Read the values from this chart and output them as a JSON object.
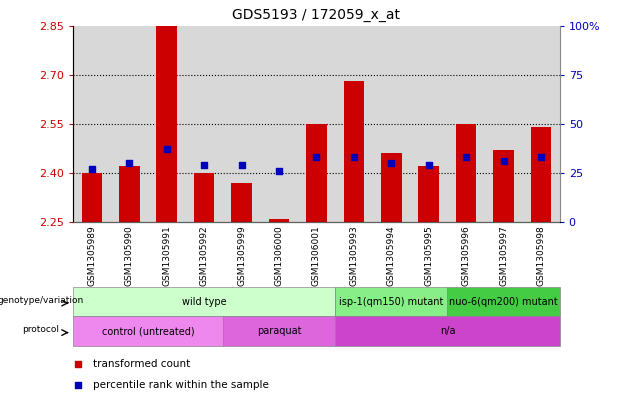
{
  "title": "GDS5193 / 172059_x_at",
  "samples": [
    "GSM1305989",
    "GSM1305990",
    "GSM1305991",
    "GSM1305992",
    "GSM1305999",
    "GSM1306000",
    "GSM1306001",
    "GSM1305993",
    "GSM1305994",
    "GSM1305995",
    "GSM1305996",
    "GSM1305997",
    "GSM1305998"
  ],
  "transformed_count": [
    2.4,
    2.42,
    2.85,
    2.4,
    2.37,
    2.26,
    2.55,
    2.68,
    2.46,
    2.42,
    2.55,
    2.47,
    2.54
  ],
  "percentile_rank": [
    27,
    30,
    37,
    29,
    29,
    26,
    33,
    33,
    30,
    29,
    33,
    31,
    33
  ],
  "ylim_left": [
    2.25,
    2.85
  ],
  "ylim_right": [
    0,
    100
  ],
  "yticks_left": [
    2.25,
    2.4,
    2.55,
    2.7,
    2.85
  ],
  "yticks_right": [
    0,
    25,
    50,
    75,
    100
  ],
  "bar_color": "#cc0000",
  "dot_color": "#0000bb",
  "bar_bottom": 2.25,
  "grid_color": "#000000",
  "plot_bg": "#d8d8d8",
  "genotype_groups": [
    {
      "label": "wild type",
      "start": 0,
      "end": 7,
      "color": "#ccffcc"
    },
    {
      "label": "isp-1(qm150) mutant",
      "start": 7,
      "end": 10,
      "color": "#88ee88"
    },
    {
      "label": "nuo-6(qm200) mutant",
      "start": 10,
      "end": 13,
      "color": "#44cc44"
    }
  ],
  "protocol_groups": [
    {
      "label": "control (untreated)",
      "start": 0,
      "end": 4,
      "color": "#ee88ee"
    },
    {
      "label": "paraquat",
      "start": 4,
      "end": 7,
      "color": "#dd66dd"
    },
    {
      "label": "n/a",
      "start": 7,
      "end": 13,
      "color": "#cc44cc"
    }
  ],
  "legend_items": [
    {
      "color": "#cc0000",
      "label": "transformed count"
    },
    {
      "color": "#0000bb",
      "label": "percentile rank within the sample"
    }
  ],
  "left_label_color": "#cc0000",
  "right_label_color": "#0000bb",
  "title_color": "#000000",
  "xtick_bg": "#c0c0c0"
}
